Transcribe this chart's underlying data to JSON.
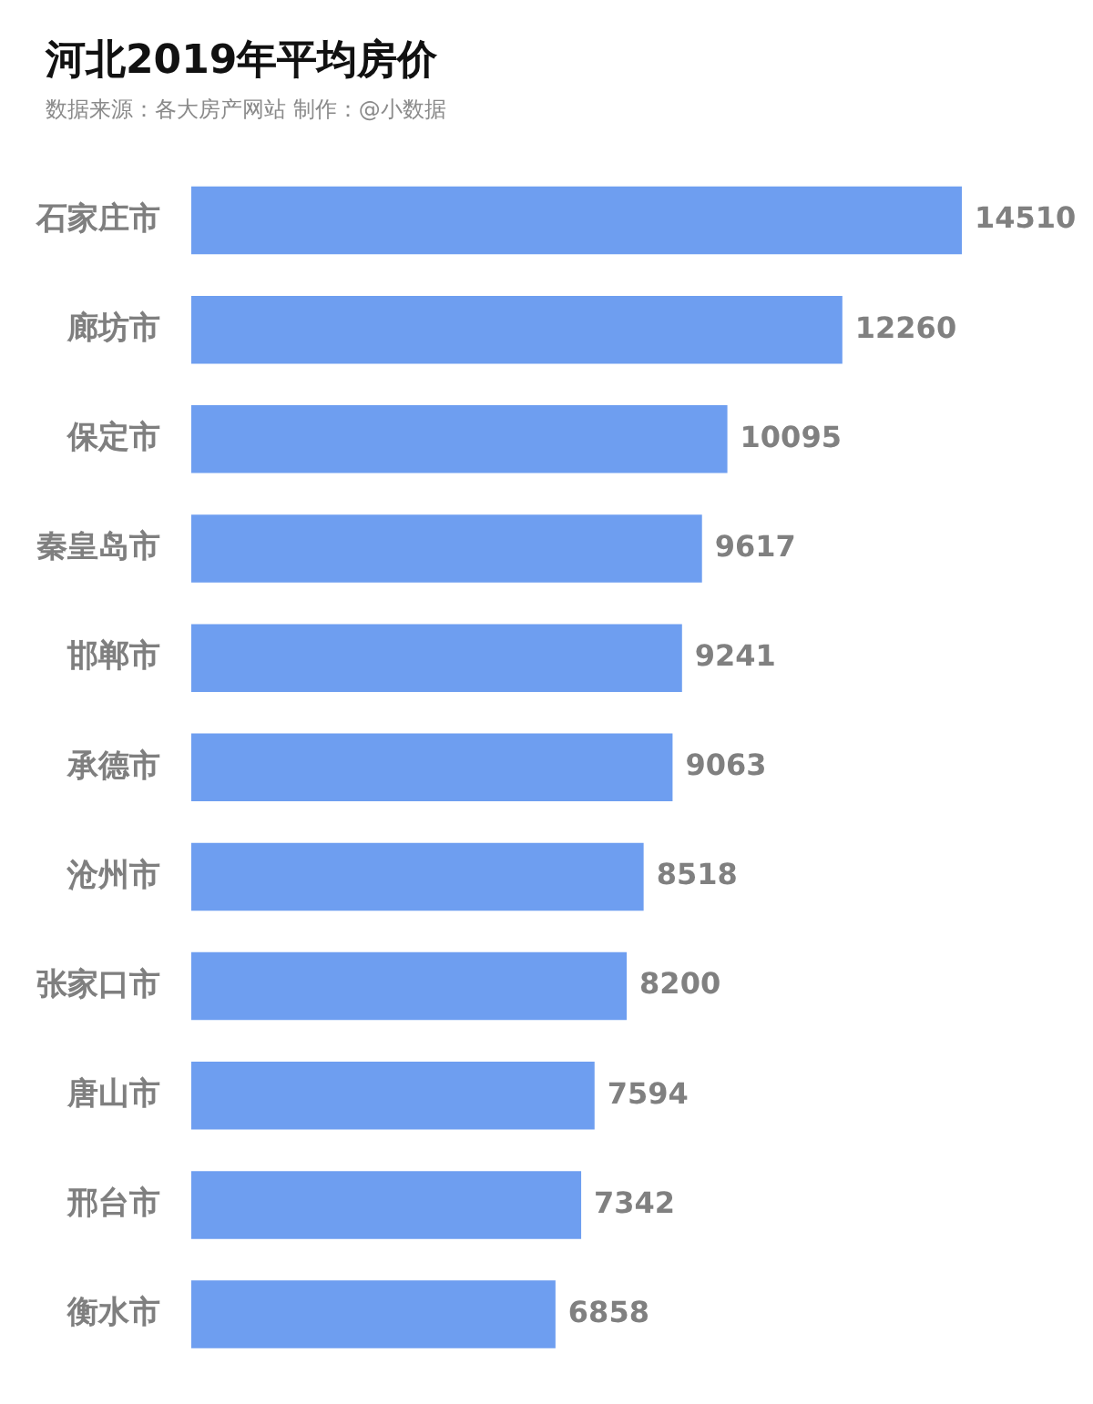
{
  "chart_data": {
    "type": "bar",
    "title": "河北2019年平均房价",
    "subtitle": "数据来源：各大房产网站 制作：@小数据",
    "orientation": "horizontal",
    "categories": [
      "石家庄市",
      "廊坊市",
      "保定市",
      "秦皇岛市",
      "邯郸市",
      "承德市",
      "沧州市",
      "张家口市",
      "唐山市",
      "邢台市",
      "衡水市"
    ],
    "values": [
      14510,
      12260,
      10095,
      9617,
      9241,
      9063,
      8518,
      8200,
      7594,
      7342,
      6858
    ],
    "color": "#6e9ef0",
    "data_labels": true,
    "grid": false,
    "legend": false,
    "tick_labels": "y"
  }
}
